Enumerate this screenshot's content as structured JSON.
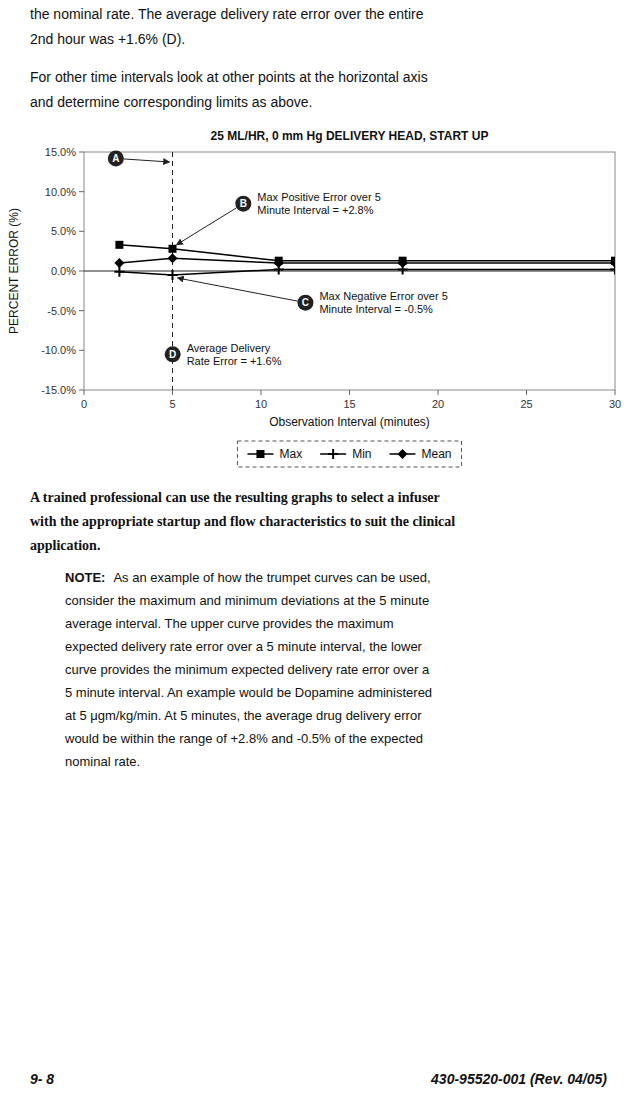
{
  "chart_data": {
    "type": "line",
    "title": "25 ML/HR, 0 mm Hg DELIVERY HEAD, START UP",
    "x_label": "Observation Interval (minutes)",
    "y_label": "PERCENT ERROR (%)",
    "xlim": [
      0,
      30
    ],
    "ylim": [
      -15.0,
      15.0
    ],
    "xticks": [
      0,
      5,
      10,
      15,
      20,
      25,
      30
    ],
    "yticks": [
      {
        "value": -15.0,
        "label": "-15.0%"
      },
      {
        "value": -10.0,
        "label": "-10.0%"
      },
      {
        "value": -5.0,
        "label": "-5.0%"
      },
      {
        "value": 0.0,
        "label": "0.0%"
      },
      {
        "value": 5.0,
        "label": "5.0%"
      },
      {
        "value": 10.0,
        "label": "10.0%"
      },
      {
        "value": 15.0,
        "label": "15.0%"
      }
    ],
    "x": [
      2,
      5,
      11,
      18,
      30
    ],
    "series": [
      {
        "name": "Max",
        "color": "#000000",
        "marker": "square",
        "values": [
          3.3,
          2.8,
          1.3,
          1.3,
          1.3
        ]
      },
      {
        "name": "Min",
        "color": "#000000",
        "marker": "plus",
        "values": [
          -0.1,
          -0.5,
          0.2,
          0.2,
          0.2
        ]
      },
      {
        "name": "Mean",
        "color": "#000000",
        "marker": "diamond",
        "values": [
          1.0,
          1.6,
          1.0,
          1.0,
          1.0
        ]
      }
    ],
    "hline_y": 0,
    "vline_x": 5,
    "grid": false,
    "legend": "bottom",
    "annotations": [
      {
        "label": "A"
      },
      {
        "label": "B",
        "text": "Max Positive Error over 5\nMinute Interval = +2.8%"
      },
      {
        "label": "C",
        "text": "Max Negative Error over 5\nMinute Interval = -0.5%"
      },
      {
        "label": "D",
        "text": "Average Delivery\nRate Error = +1.6%"
      }
    ]
  },
  "page_text": {
    "header": [
      "the nominal rate. The average delivery rate error over the entire",
      "2nd hour was +1.6% (D)."
    ],
    "subheader": [
      "For other time intervals look at other points at the horizontal axis",
      "and determine corresponding limits as above."
    ],
    "bold_paragraph": [
      "A trained professional can use the resulting graphs to select a infuser",
      "with the appropriate startup and flow characteristics to suit the clinical",
      "application."
    ],
    "note_label": "NOTE:",
    "note_lines": [
      "As an example of how the trumpet curves can be used,",
      "consider the maximum and minimum deviations at the 5 minute",
      "average interval.   The upper curve provides the maximum",
      "expected delivery rate error over a 5 minute interval, the lower",
      "curve provides the minimum expected delivery rate error over a",
      "5 minute interval. An example would be Dopamine administered",
      "at 5 μgm/kg/min. At 5 minutes, the average drug delivery error",
      "would be within the range of +2.8% and -0.5% of the expected",
      "nominal rate."
    ],
    "footer_left": "9- 8",
    "footer_right": "430-95520-001 (Rev. 04/05)"
  }
}
